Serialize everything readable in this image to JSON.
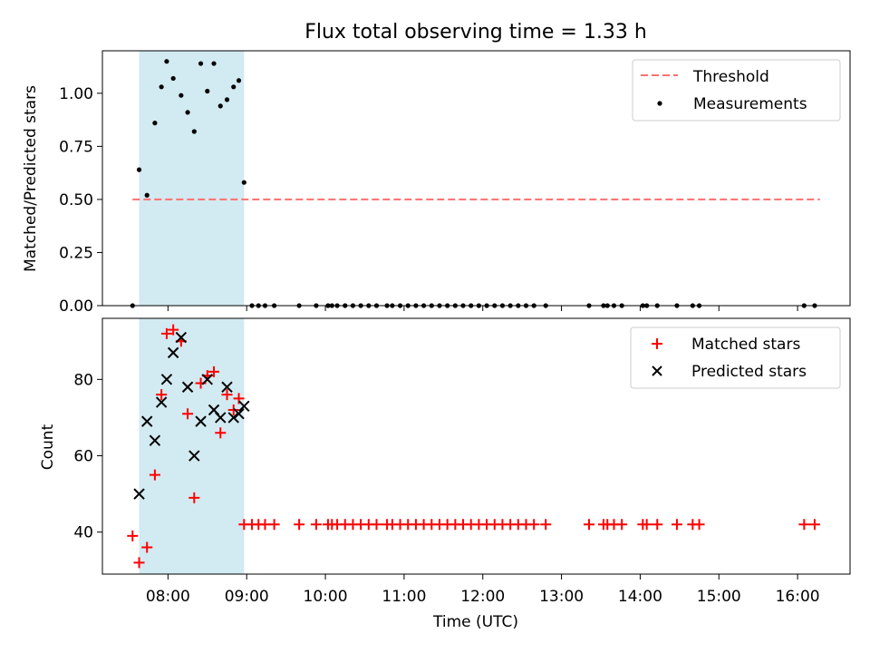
{
  "chart_data": [
    {
      "type": "scatter",
      "title": "Flux total observing time = 1.33 h",
      "ylabel": "Matched/Predicted stars",
      "ylim": [
        0,
        1.2
      ],
      "yticks": [
        "0.00",
        "0.25",
        "0.50",
        "0.75",
        "1.00"
      ],
      "shaded_span": [
        "07:38",
        "08:58"
      ],
      "shaded_color": "#add8e6",
      "legend_position": "top-right",
      "series": [
        {
          "name": "Threshold",
          "kind": "dashed-line",
          "color": "#ff6f6f",
          "points": [
            [
              "07:33",
              0.5
            ],
            [
              "16:17",
              0.5
            ]
          ]
        },
        {
          "name": "Measurements",
          "kind": "dots",
          "color": "#000000",
          "points": [
            [
              "07:33",
              0.0
            ],
            [
              "07:38",
              0.64
            ],
            [
              "07:44",
              0.52
            ],
            [
              "07:50",
              0.86
            ],
            [
              "07:55",
              1.03
            ],
            [
              "07:59",
              1.15
            ],
            [
              "08:04",
              1.07
            ],
            [
              "08:10",
              0.99
            ],
            [
              "08:15",
              0.91
            ],
            [
              "08:20",
              0.82
            ],
            [
              "08:25",
              1.14
            ],
            [
              "08:30",
              1.01
            ],
            [
              "08:35",
              1.14
            ],
            [
              "08:40",
              0.94
            ],
            [
              "08:45",
              0.97
            ],
            [
              "08:50",
              1.03
            ],
            [
              "08:54",
              1.06
            ],
            [
              "08:58",
              0.58
            ],
            [
              "09:04",
              0.0
            ],
            [
              "09:09",
              0.0
            ],
            [
              "09:14",
              0.0
            ],
            [
              "09:21",
              0.0
            ],
            [
              "09:40",
              0.0
            ],
            [
              "09:53",
              0.0
            ],
            [
              "10:02",
              0.0
            ],
            [
              "10:05",
              0.0
            ],
            [
              "10:09",
              0.0
            ],
            [
              "10:15",
              0.0
            ],
            [
              "10:21",
              0.0
            ],
            [
              "10:27",
              0.0
            ],
            [
              "10:33",
              0.0
            ],
            [
              "10:39",
              0.0
            ],
            [
              "10:47",
              0.0
            ],
            [
              "10:51",
              0.0
            ],
            [
              "10:57",
              0.0
            ],
            [
              "11:03",
              0.0
            ],
            [
              "11:09",
              0.0
            ],
            [
              "11:15",
              0.0
            ],
            [
              "11:21",
              0.0
            ],
            [
              "11:27",
              0.0
            ],
            [
              "11:33",
              0.0
            ],
            [
              "11:39",
              0.0
            ],
            [
              "11:45",
              0.0
            ],
            [
              "11:51",
              0.0
            ],
            [
              "11:57",
              0.0
            ],
            [
              "12:03",
              0.0
            ],
            [
              "12:09",
              0.0
            ],
            [
              "12:15",
              0.0
            ],
            [
              "12:21",
              0.0
            ],
            [
              "12:27",
              0.0
            ],
            [
              "12:33",
              0.0
            ],
            [
              "12:39",
              0.0
            ],
            [
              "12:48",
              0.0
            ],
            [
              "13:21",
              0.0
            ],
            [
              "13:32",
              0.0
            ],
            [
              "13:35",
              0.0
            ],
            [
              "13:40",
              0.0
            ],
            [
              "13:46",
              0.0
            ],
            [
              "14:02",
              0.0
            ],
            [
              "14:05",
              0.0
            ],
            [
              "14:13",
              0.0
            ],
            [
              "14:28",
              0.0
            ],
            [
              "14:40",
              0.0
            ],
            [
              "14:45",
              0.0
            ],
            [
              "16:05",
              0.0
            ],
            [
              "16:13",
              0.0
            ]
          ]
        }
      ]
    },
    {
      "type": "scatter",
      "xlabel": "Time (UTC)",
      "ylabel": "Count",
      "ylim": [
        29,
        96
      ],
      "yticks": [
        "40",
        "60",
        "80"
      ],
      "xticks": [
        "08:00",
        "09:00",
        "10:00",
        "11:00",
        "12:00",
        "13:00",
        "14:00",
        "15:00",
        "16:00"
      ],
      "shaded_span": [
        "07:38",
        "08:58"
      ],
      "shaded_color": "#add8e6",
      "legend_position": "top-right",
      "series": [
        {
          "name": "Matched stars",
          "kind": "plus",
          "color": "#ff0000",
          "points": [
            [
              "07:33",
              39
            ],
            [
              "07:38",
              32
            ],
            [
              "07:44",
              36
            ],
            [
              "07:50",
              55
            ],
            [
              "07:55",
              76
            ],
            [
              "07:59",
              92
            ],
            [
              "08:04",
              93
            ],
            [
              "08:10",
              90
            ],
            [
              "08:15",
              71
            ],
            [
              "08:20",
              49
            ],
            [
              "08:25",
              79
            ],
            [
              "08:30",
              81
            ],
            [
              "08:35",
              82
            ],
            [
              "08:40",
              66
            ],
            [
              "08:45",
              76
            ],
            [
              "08:50",
              72
            ],
            [
              "08:54",
              75
            ],
            [
              "08:58",
              42
            ],
            [
              "09:04",
              42
            ],
            [
              "09:09",
              42
            ],
            [
              "09:14",
              42
            ],
            [
              "09:21",
              42
            ],
            [
              "09:40",
              42
            ],
            [
              "09:53",
              42
            ],
            [
              "10:02",
              42
            ],
            [
              "10:05",
              42
            ],
            [
              "10:09",
              42
            ],
            [
              "10:15",
              42
            ],
            [
              "10:21",
              42
            ],
            [
              "10:27",
              42
            ],
            [
              "10:33",
              42
            ],
            [
              "10:39",
              42
            ],
            [
              "10:47",
              42
            ],
            [
              "10:51",
              42
            ],
            [
              "10:57",
              42
            ],
            [
              "11:03",
              42
            ],
            [
              "11:09",
              42
            ],
            [
              "11:15",
              42
            ],
            [
              "11:21",
              42
            ],
            [
              "11:27",
              42
            ],
            [
              "11:33",
              42
            ],
            [
              "11:39",
              42
            ],
            [
              "11:45",
              42
            ],
            [
              "11:51",
              42
            ],
            [
              "11:57",
              42
            ],
            [
              "12:03",
              42
            ],
            [
              "12:09",
              42
            ],
            [
              "12:15",
              42
            ],
            [
              "12:21",
              42
            ],
            [
              "12:27",
              42
            ],
            [
              "12:33",
              42
            ],
            [
              "12:39",
              42
            ],
            [
              "12:48",
              42
            ],
            [
              "13:21",
              42
            ],
            [
              "13:32",
              42
            ],
            [
              "13:35",
              42
            ],
            [
              "13:40",
              42
            ],
            [
              "13:46",
              42
            ],
            [
              "14:02",
              42
            ],
            [
              "14:05",
              42
            ],
            [
              "14:13",
              42
            ],
            [
              "14:28",
              42
            ],
            [
              "14:40",
              42
            ],
            [
              "14:45",
              42
            ],
            [
              "16:05",
              42
            ],
            [
              "16:13",
              42
            ]
          ]
        },
        {
          "name": "Predicted stars",
          "kind": "cross",
          "color": "#000000",
          "points": [
            [
              "07:38",
              50
            ],
            [
              "07:44",
              69
            ],
            [
              "07:50",
              64
            ],
            [
              "07:55",
              74
            ],
            [
              "07:59",
              80
            ],
            [
              "08:04",
              87
            ],
            [
              "08:10",
              91
            ],
            [
              "08:15",
              78
            ],
            [
              "08:20",
              60
            ],
            [
              "08:25",
              69
            ],
            [
              "08:30",
              80
            ],
            [
              "08:35",
              72
            ],
            [
              "08:40",
              70
            ],
            [
              "08:45",
              78
            ],
            [
              "08:50",
              70
            ],
            [
              "08:54",
              71
            ],
            [
              "08:58",
              73
            ]
          ]
        }
      ]
    }
  ]
}
